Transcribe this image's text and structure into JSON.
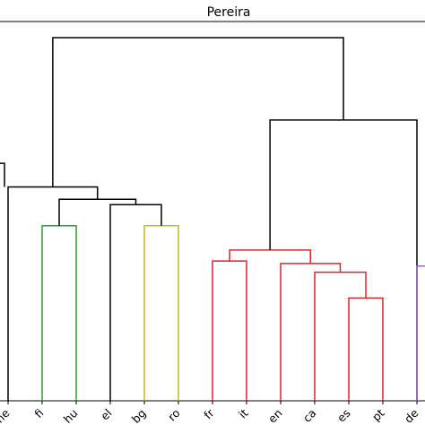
{
  "chart_data": {
    "type": "dendrogram",
    "title": "Pereira",
    "xlabel": "",
    "ylabel": "",
    "grid": false,
    "leaves": [
      "ne",
      "fi",
      "hu",
      "el",
      "bg",
      "ro",
      "fr",
      "it",
      "en",
      "ca",
      "es",
      "pt",
      "de"
    ],
    "leaf_positions": [
      0,
      1,
      2,
      3,
      4,
      5,
      6,
      7,
      8,
      9,
      10,
      11,
      12
    ],
    "height_range": [
      0,
      1.0
    ],
    "links": [
      {
        "left": 1,
        "right": 2,
        "left_height": 0,
        "right_height": 0,
        "height": 0.482,
        "color": "#2ca02c"
      },
      {
        "left": 4,
        "right": 5,
        "left_height": 0,
        "right_height": 0,
        "height": 0.482,
        "color": "#bcbd22"
      },
      {
        "left": 3,
        "right": 4.5,
        "left_height": 0,
        "right_height": 0.482,
        "height": 0.54,
        "color": "#000000"
      },
      {
        "left": 1.5,
        "right": 3.75,
        "left_height": 0.482,
        "right_height": 0.54,
        "height": 0.555,
        "color": "#000000"
      },
      {
        "left": 10,
        "right": 11,
        "left_height": 0,
        "right_height": 0,
        "height": 0.283,
        "color": "#d62728"
      },
      {
        "left": 9,
        "right": 10.5,
        "left_height": 0,
        "right_height": 0.283,
        "height": 0.354,
        "color": "#d62728"
      },
      {
        "left": 8,
        "right": 9.75,
        "left_height": 0,
        "right_height": 0.354,
        "height": 0.378,
        "color": "#d62728"
      },
      {
        "left": 6,
        "right": 7,
        "left_height": 0,
        "right_height": 0,
        "height": 0.385,
        "color": "#d62728"
      },
      {
        "left": 6.5,
        "right": 8.875,
        "left_height": 0.385,
        "right_height": 0.378,
        "height": 0.415,
        "color": "#d62728"
      },
      {
        "left": 0,
        "right": 2.625,
        "left_height": 0,
        "right_height": 0.555,
        "height": 0.589,
        "color": "#000000"
      },
      {
        "left": 7.6875,
        "right": 12,
        "left_height": 0.415,
        "right_height": 0,
        "height": 0.773,
        "color": "#000000"
      },
      {
        "left": 1.3125,
        "right": 9.84375,
        "left_height": 0.589,
        "right_height": 0.773,
        "height": 1.0,
        "color": "#000000"
      }
    ],
    "color_partial": [
      {
        "name": "de",
        "x": 12,
        "height": 0.371,
        "color": "#9467bd"
      }
    ],
    "extra_stub": {
      "x": -0.15,
      "from": 0.589,
      "to": 0.654,
      "color": "#000000"
    }
  }
}
